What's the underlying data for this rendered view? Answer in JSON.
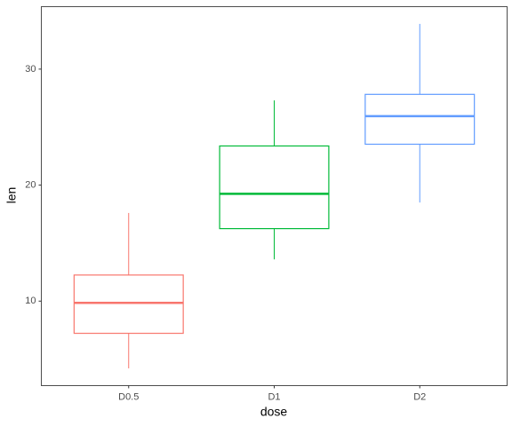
{
  "chart_data": {
    "type": "box",
    "x_label": "dose",
    "y_label": "len",
    "categories": [
      "D0.5",
      "D1",
      "D2"
    ],
    "colors": [
      "#F8766D",
      "#00BA38",
      "#619CFF"
    ],
    "min": [
      4.2,
      13.6,
      18.5
    ],
    "q1": [
      7.225,
      16.25,
      23.525
    ],
    "median": [
      9.85,
      19.25,
      25.95
    ],
    "q3": [
      12.25,
      23.375,
      27.825
    ],
    "max": [
      17.6,
      27.3,
      33.9
    ],
    "ylim": [
      2.715,
      35.385
    ],
    "yticks": [
      10,
      20,
      30
    ],
    "grid": false
  }
}
